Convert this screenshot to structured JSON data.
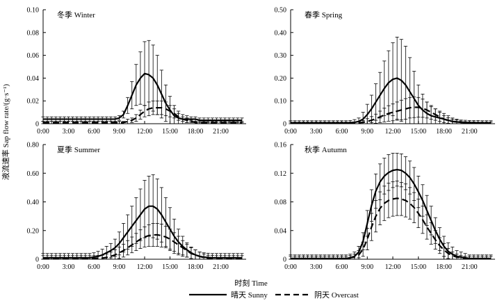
{
  "chart_data": {
    "type": "line",
    "shared_xlabel": "时刻 Time",
    "shared_ylabel": "液流速率 Sap flow rate/(g·s⁻¹)",
    "x_tick_labels": [
      "0:00",
      "3:00",
      "6:00",
      "9:00",
      "12:00",
      "15:00",
      "18:00",
      "21:00"
    ],
    "x_hours": [
      0,
      0.5,
      1,
      1.5,
      2,
      2.5,
      3,
      3.5,
      4,
      4.5,
      5,
      5.5,
      6,
      6.5,
      7,
      7.5,
      8,
      8.5,
      9,
      9.5,
      10,
      10.5,
      11,
      11.5,
      12,
      12.5,
      13,
      13.5,
      14,
      14.5,
      15,
      15.5,
      16,
      16.5,
      17,
      17.5,
      18,
      18.5,
      19,
      19.5,
      20,
      20.5,
      21,
      21.5,
      22,
      22.5,
      23,
      23.5
    ],
    "legend": {
      "sunny": "晴天  Sunny",
      "overcast": "阴天  Overcast"
    },
    "panels": [
      {
        "title": "冬季  Winter",
        "ylim": [
          0,
          0.1
        ],
        "yticks": [
          "0",
          "0.02",
          "0.04",
          "0.06",
          "0.08",
          "0.10"
        ],
        "series": [
          {
            "name": "Sunny",
            "style": "solid",
            "values": [
              0.004,
              0.004,
              0.004,
              0.004,
              0.004,
              0.004,
              0.004,
              0.004,
              0.004,
              0.004,
              0.004,
              0.004,
              0.004,
              0.004,
              0.004,
              0.004,
              0.004,
              0.004,
              0.005,
              0.008,
              0.016,
              0.025,
              0.034,
              0.04,
              0.044,
              0.043,
              0.04,
              0.034,
              0.026,
              0.018,
              0.012,
              0.007,
              0.005,
              0.004,
              0.004,
              0.004,
              0.004,
              0.003,
              0.003,
              0.003,
              0.003,
              0.003,
              0.003,
              0.003,
              0.003,
              0.003,
              0.003,
              0.003
            ],
            "err": [
              0.002,
              0.002,
              0.002,
              0.002,
              0.002,
              0.002,
              0.002,
              0.002,
              0.002,
              0.002,
              0.002,
              0.002,
              0.002,
              0.002,
              0.002,
              0.002,
              0.002,
              0.002,
              0.002,
              0.003,
              0.007,
              0.012,
              0.018,
              0.023,
              0.028,
              0.03,
              0.029,
              0.026,
              0.021,
              0.016,
              0.012,
              0.009,
              0.006,
              0.004,
              0.003,
              0.002,
              0.002,
              0.002,
              0.002,
              0.002,
              0.002,
              0.002,
              0.002,
              0.002,
              0.002,
              0.002,
              0.002,
              0.002
            ]
          },
          {
            "name": "Overcast",
            "style": "dashed",
            "values": [
              0.001,
              0.001,
              0.001,
              0.001,
              0.001,
              0.001,
              0.001,
              0.001,
              0.001,
              0.001,
              0.001,
              0.001,
              0.001,
              0.001,
              0.001,
              0.001,
              0.001,
              0.001,
              0.001,
              0.001,
              0.002,
              0.003,
              0.005,
              0.008,
              0.011,
              0.013,
              0.014,
              0.014,
              0.014,
              0.013,
              0.011,
              0.009,
              0.006,
              0.004,
              0.003,
              0.002,
              0.001,
              0.001,
              0.001,
              0.001,
              0.001,
              0.001,
              0.001,
              0.001,
              0.001,
              0.001,
              0.001,
              0.001
            ],
            "err": [
              0.001,
              0.001,
              0.001,
              0.001,
              0.001,
              0.001,
              0.001,
              0.001,
              0.001,
              0.001,
              0.001,
              0.001,
              0.001,
              0.001,
              0.001,
              0.001,
              0.001,
              0.001,
              0.001,
              0.001,
              0.002,
              0.002,
              0.003,
              0.004,
              0.005,
              0.006,
              0.006,
              0.006,
              0.006,
              0.006,
              0.005,
              0.004,
              0.003,
              0.002,
              0.002,
              0.001,
              0.001,
              0.001,
              0.001,
              0.001,
              0.001,
              0.001,
              0.001,
              0.001,
              0.001,
              0.001,
              0.001,
              0.001
            ]
          }
        ]
      },
      {
        "title": "春季  Spring",
        "ylim": [
          0,
          0.5
        ],
        "yticks": [
          "0",
          "0.10",
          "0.20",
          "0.30",
          "0.40",
          "0.50"
        ],
        "series": [
          {
            "name": "Sunny",
            "style": "solid",
            "values": [
              0.003,
              0.003,
              0.003,
              0.003,
              0.003,
              0.003,
              0.003,
              0.003,
              0.003,
              0.003,
              0.003,
              0.003,
              0.003,
              0.003,
              0.004,
              0.006,
              0.01,
              0.02,
              0.04,
              0.065,
              0.095,
              0.125,
              0.155,
              0.18,
              0.195,
              0.2,
              0.19,
              0.17,
              0.14,
              0.11,
              0.08,
              0.06,
              0.045,
              0.035,
              0.03,
              0.025,
              0.02,
              0.015,
              0.01,
              0.008,
              0.006,
              0.005,
              0.004,
              0.004,
              0.004,
              0.003,
              0.003,
              0.003
            ],
            "err": [
              0.01,
              0.01,
              0.01,
              0.01,
              0.01,
              0.01,
              0.01,
              0.01,
              0.01,
              0.01,
              0.01,
              0.01,
              0.01,
              0.01,
              0.01,
              0.012,
              0.015,
              0.03,
              0.045,
              0.06,
              0.08,
              0.1,
              0.12,
              0.14,
              0.16,
              0.18,
              0.18,
              0.17,
              0.15,
              0.12,
              0.09,
              0.07,
              0.05,
              0.04,
              0.035,
              0.03,
              0.025,
              0.02,
              0.015,
              0.012,
              0.01,
              0.01,
              0.01,
              0.01,
              0.01,
              0.01,
              0.01,
              0.01
            ]
          },
          {
            "name": "Overcast",
            "style": "dashed",
            "values": [
              0.002,
              0.002,
              0.002,
              0.002,
              0.002,
              0.002,
              0.002,
              0.002,
              0.002,
              0.002,
              0.002,
              0.002,
              0.002,
              0.002,
              0.002,
              0.003,
              0.004,
              0.006,
              0.01,
              0.015,
              0.022,
              0.03,
              0.038,
              0.045,
              0.05,
              0.055,
              0.06,
              0.065,
              0.07,
              0.072,
              0.072,
              0.068,
              0.06,
              0.05,
              0.04,
              0.03,
              0.02,
              0.014,
              0.01,
              0.008,
              0.006,
              0.004,
              0.003,
              0.003,
              0.002,
              0.002,
              0.002,
              0.002
            ],
            "err": [
              0.005,
              0.005,
              0.005,
              0.005,
              0.005,
              0.005,
              0.005,
              0.005,
              0.005,
              0.005,
              0.005,
              0.005,
              0.005,
              0.005,
              0.005,
              0.005,
              0.006,
              0.008,
              0.012,
              0.016,
              0.02,
              0.025,
              0.03,
              0.034,
              0.037,
              0.04,
              0.043,
              0.045,
              0.045,
              0.045,
              0.043,
              0.04,
              0.035,
              0.03,
              0.025,
              0.02,
              0.015,
              0.012,
              0.01,
              0.008,
              0.006,
              0.005,
              0.005,
              0.005,
              0.005,
              0.005,
              0.005,
              0.005
            ]
          }
        ]
      },
      {
        "title": "夏季  Summer",
        "ylim": [
          0,
          0.8
        ],
        "yticks": [
          "0",
          "0.20",
          "0.40",
          "0.60",
          "0.80"
        ],
        "series": [
          {
            "name": "Sunny",
            "style": "solid",
            "values": [
              0.01,
              0.01,
              0.01,
              0.01,
              0.01,
              0.01,
              0.01,
              0.01,
              0.01,
              0.01,
              0.01,
              0.01,
              0.015,
              0.02,
              0.03,
              0.045,
              0.06,
              0.08,
              0.11,
              0.15,
              0.19,
              0.23,
              0.27,
              0.31,
              0.35,
              0.37,
              0.37,
              0.35,
              0.31,
              0.26,
              0.21,
              0.16,
              0.12,
              0.09,
              0.065,
              0.045,
              0.03,
              0.02,
              0.015,
              0.012,
              0.01,
              0.01,
              0.01,
              0.01,
              0.01,
              0.01,
              0.01,
              0.01
            ],
            "err": [
              0.03,
              0.03,
              0.03,
              0.03,
              0.03,
              0.03,
              0.03,
              0.03,
              0.03,
              0.03,
              0.03,
              0.03,
              0.03,
              0.035,
              0.04,
              0.045,
              0.05,
              0.06,
              0.08,
              0.1,
              0.12,
              0.14,
              0.16,
              0.18,
              0.2,
              0.21,
              0.22,
              0.21,
              0.19,
              0.17,
              0.15,
              0.12,
              0.09,
              0.07,
              0.05,
              0.04,
              0.035,
              0.03,
              0.03,
              0.03,
              0.03,
              0.03,
              0.03,
              0.03,
              0.03,
              0.03,
              0.03,
              0.03
            ]
          },
          {
            "name": "Overcast",
            "style": "dashed",
            "values": [
              0.005,
              0.005,
              0.005,
              0.005,
              0.005,
              0.005,
              0.005,
              0.005,
              0.005,
              0.005,
              0.005,
              0.005,
              0.005,
              0.006,
              0.008,
              0.012,
              0.02,
              0.03,
              0.045,
              0.06,
              0.08,
              0.1,
              0.12,
              0.14,
              0.155,
              0.165,
              0.17,
              0.17,
              0.165,
              0.155,
              0.14,
              0.12,
              0.1,
              0.08,
              0.06,
              0.04,
              0.03,
              0.02,
              0.012,
              0.008,
              0.006,
              0.005,
              0.005,
              0.005,
              0.005,
              0.005,
              0.005,
              0.005
            ],
            "err": [
              0.02,
              0.02,
              0.02,
              0.02,
              0.02,
              0.02,
              0.02,
              0.02,
              0.02,
              0.02,
              0.02,
              0.02,
              0.02,
              0.02,
              0.02,
              0.025,
              0.03,
              0.035,
              0.04,
              0.045,
              0.05,
              0.055,
              0.06,
              0.065,
              0.07,
              0.075,
              0.08,
              0.08,
              0.08,
              0.075,
              0.07,
              0.065,
              0.06,
              0.05,
              0.045,
              0.04,
              0.035,
              0.03,
              0.025,
              0.02,
              0.02,
              0.02,
              0.02,
              0.02,
              0.02,
              0.02,
              0.02,
              0.02
            ]
          }
        ]
      },
      {
        "title": "秋季  Autumn",
        "ylim": [
          0,
          0.16
        ],
        "yticks": [
          "0",
          "0.04",
          "0.08",
          "0.12",
          "0.16"
        ],
        "series": [
          {
            "name": "Sunny",
            "style": "solid",
            "values": [
              0.001,
              0.001,
              0.001,
              0.001,
              0.001,
              0.001,
              0.001,
              0.001,
              0.001,
              0.001,
              0.001,
              0.001,
              0.001,
              0.001,
              0.002,
              0.004,
              0.01,
              0.025,
              0.05,
              0.075,
              0.095,
              0.108,
              0.116,
              0.121,
              0.124,
              0.125,
              0.124,
              0.12,
              0.114,
              0.105,
              0.094,
              0.082,
              0.068,
              0.054,
              0.04,
              0.028,
              0.018,
              0.011,
              0.007,
              0.004,
              0.003,
              0.002,
              0.001,
              0.001,
              0.001,
              0.001,
              0.001,
              0.001
            ],
            "err": [
              0.005,
              0.005,
              0.005,
              0.005,
              0.005,
              0.005,
              0.005,
              0.005,
              0.005,
              0.005,
              0.005,
              0.005,
              0.005,
              0.005,
              0.005,
              0.006,
              0.008,
              0.012,
              0.018,
              0.022,
              0.024,
              0.025,
              0.025,
              0.025,
              0.024,
              0.023,
              0.023,
              0.023,
              0.023,
              0.023,
              0.022,
              0.022,
              0.021,
              0.02,
              0.018,
              0.016,
              0.014,
              0.012,
              0.01,
              0.008,
              0.007,
              0.006,
              0.005,
              0.005,
              0.005,
              0.005,
              0.005,
              0.005
            ]
          },
          {
            "name": "Overcast",
            "style": "dashed",
            "values": [
              0.001,
              0.001,
              0.001,
              0.001,
              0.001,
              0.001,
              0.001,
              0.001,
              0.001,
              0.001,
              0.001,
              0.001,
              0.001,
              0.001,
              0.002,
              0.003,
              0.006,
              0.014,
              0.028,
              0.045,
              0.06,
              0.071,
              0.078,
              0.082,
              0.084,
              0.085,
              0.084,
              0.082,
              0.078,
              0.072,
              0.064,
              0.055,
              0.045,
              0.036,
              0.027,
              0.019,
              0.013,
              0.008,
              0.005,
              0.003,
              0.002,
              0.001,
              0.001,
              0.001,
              0.001,
              0.001,
              0.001,
              0.001
            ],
            "err": [
              0.003,
              0.003,
              0.003,
              0.003,
              0.003,
              0.003,
              0.003,
              0.003,
              0.003,
              0.003,
              0.003,
              0.003,
              0.003,
              0.003,
              0.003,
              0.004,
              0.006,
              0.01,
              0.015,
              0.019,
              0.022,
              0.023,
              0.024,
              0.024,
              0.024,
              0.024,
              0.023,
              0.023,
              0.022,
              0.021,
              0.02,
              0.019,
              0.017,
              0.015,
              0.013,
              0.011,
              0.009,
              0.007,
              0.005,
              0.004,
              0.003,
              0.003,
              0.003,
              0.003,
              0.003,
              0.003,
              0.003,
              0.003
            ]
          }
        ]
      }
    ]
  }
}
